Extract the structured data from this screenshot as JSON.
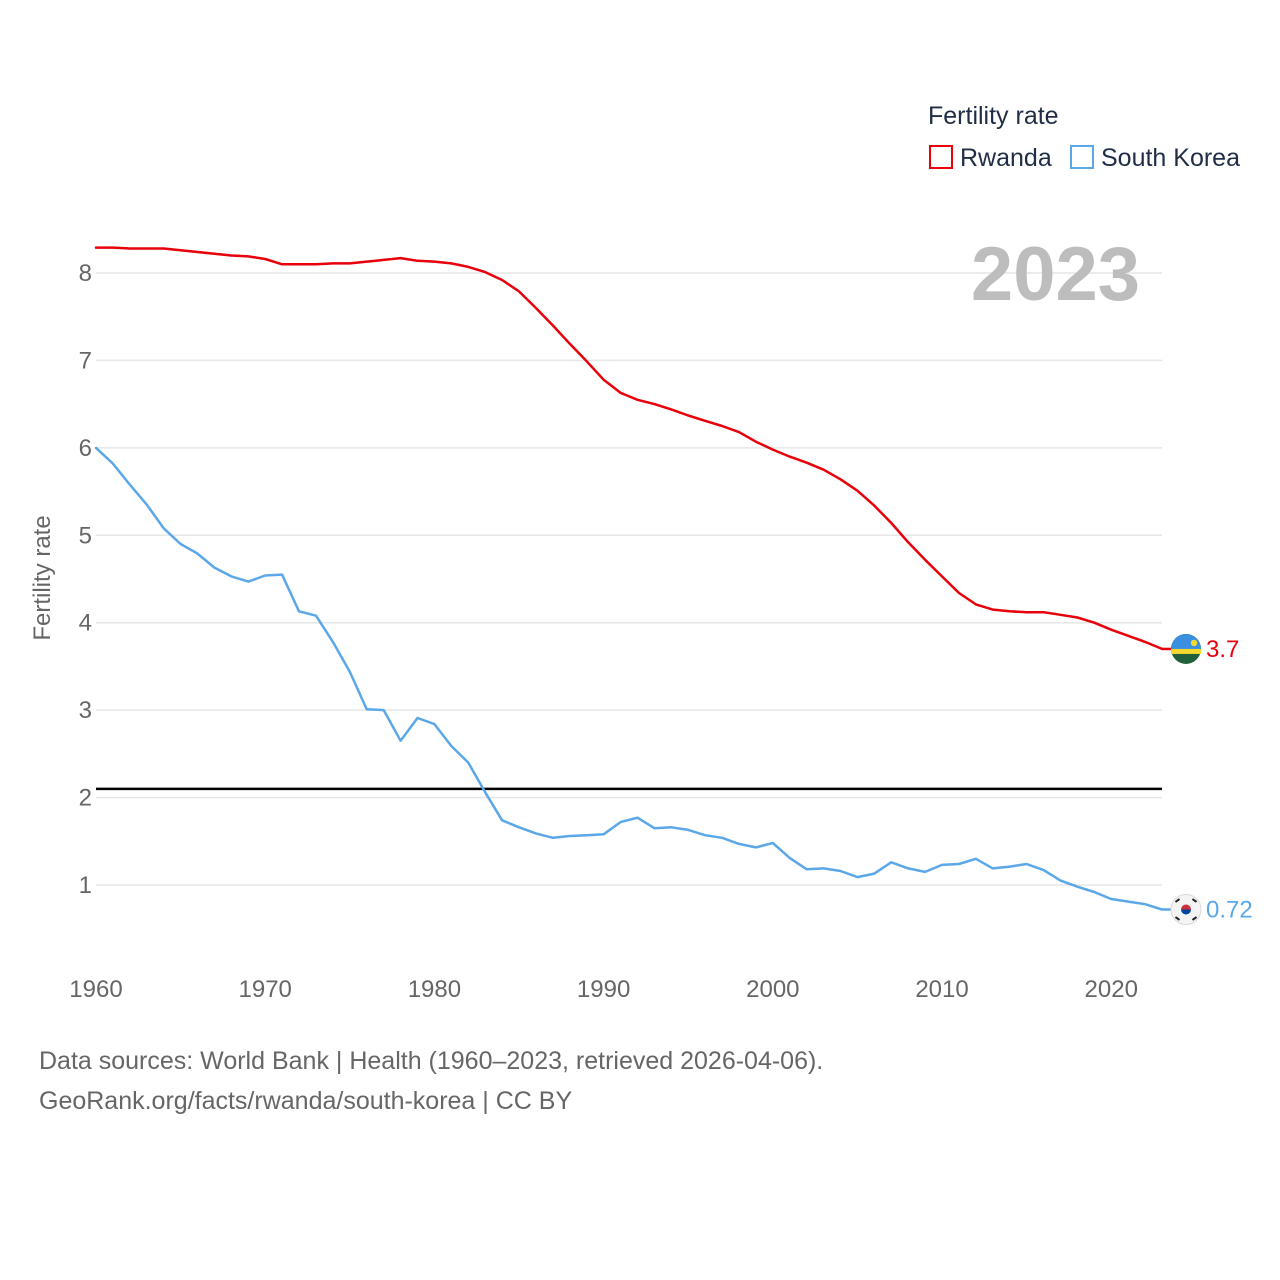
{
  "legend": {
    "title": "Fertility rate",
    "items": [
      {
        "name": "Rwanda",
        "color": "#e8000b"
      },
      {
        "name": "South Korea",
        "color": "#5ba7e8"
      }
    ]
  },
  "year_label": "2023",
  "end_labels": {
    "rwanda": "3.7",
    "south_korea": "0.72"
  },
  "flags": {
    "rwanda": "rwanda-flag-icon",
    "south_korea": "south-korea-flag-icon"
  },
  "source": {
    "line1": "Data sources: World Bank | Health (1960–2023, retrieved 2026-04-06).",
    "line2": "GeoRank.org/facts/rwanda/south-korea | CC BY"
  },
  "chart_data": {
    "type": "line",
    "title": "",
    "xlabel": "",
    "ylabel": "Fertility rate",
    "xlim": [
      1960,
      2023
    ],
    "ylim": [
      0.3,
      8.6
    ],
    "x_ticks": [
      1960,
      1970,
      1980,
      1990,
      2000,
      2010,
      2020
    ],
    "y_ticks": [
      1,
      2,
      3,
      4,
      5,
      6,
      7,
      8
    ],
    "reference_line": 2.1,
    "x": [
      1960,
      1961,
      1962,
      1963,
      1964,
      1965,
      1966,
      1967,
      1968,
      1969,
      1970,
      1971,
      1972,
      1973,
      1974,
      1975,
      1976,
      1977,
      1978,
      1979,
      1980,
      1981,
      1982,
      1983,
      1984,
      1985,
      1986,
      1987,
      1988,
      1989,
      1990,
      1991,
      1992,
      1993,
      1994,
      1995,
      1996,
      1997,
      1998,
      1999,
      2000,
      2001,
      2002,
      2003,
      2004,
      2005,
      2006,
      2007,
      2008,
      2009,
      2010,
      2011,
      2012,
      2013,
      2014,
      2015,
      2016,
      2017,
      2018,
      2019,
      2020,
      2021,
      2022,
      2023
    ],
    "series": [
      {
        "name": "Rwanda",
        "color": "#e8000b",
        "values": [
          8.29,
          8.29,
          8.28,
          8.28,
          8.28,
          8.26,
          8.24,
          8.22,
          8.2,
          8.19,
          8.16,
          8.1,
          8.1,
          8.1,
          8.11,
          8.11,
          8.13,
          8.15,
          8.17,
          8.14,
          8.13,
          8.11,
          8.07,
          8.01,
          7.92,
          7.79,
          7.6,
          7.4,
          7.19,
          6.99,
          6.78,
          6.63,
          6.55,
          6.5,
          6.44,
          6.37,
          6.31,
          6.25,
          6.18,
          6.07,
          5.98,
          5.9,
          5.83,
          5.75,
          5.64,
          5.51,
          5.34,
          5.14,
          4.92,
          4.72,
          4.53,
          4.34,
          4.21,
          4.15,
          4.13,
          4.12,
          4.12,
          4.09,
          4.06,
          4.0,
          3.92,
          3.85,
          3.78,
          3.7
        ]
      },
      {
        "name": "South Korea",
        "color": "#5ba7e8",
        "values": [
          6.0,
          5.82,
          5.58,
          5.35,
          5.08,
          4.9,
          4.79,
          4.63,
          4.53,
          4.47,
          4.54,
          4.55,
          4.13,
          4.08,
          3.78,
          3.44,
          3.01,
          3.0,
          2.65,
          2.91,
          2.84,
          2.59,
          2.4,
          2.06,
          1.74,
          1.66,
          1.59,
          1.54,
          1.56,
          1.57,
          1.58,
          1.72,
          1.77,
          1.65,
          1.66,
          1.63,
          1.57,
          1.54,
          1.47,
          1.43,
          1.48,
          1.31,
          1.18,
          1.19,
          1.16,
          1.09,
          1.13,
          1.26,
          1.19,
          1.15,
          1.23,
          1.24,
          1.3,
          1.19,
          1.21,
          1.24,
          1.17,
          1.05,
          0.98,
          0.92,
          0.84,
          0.81,
          0.78,
          0.72
        ]
      }
    ]
  }
}
